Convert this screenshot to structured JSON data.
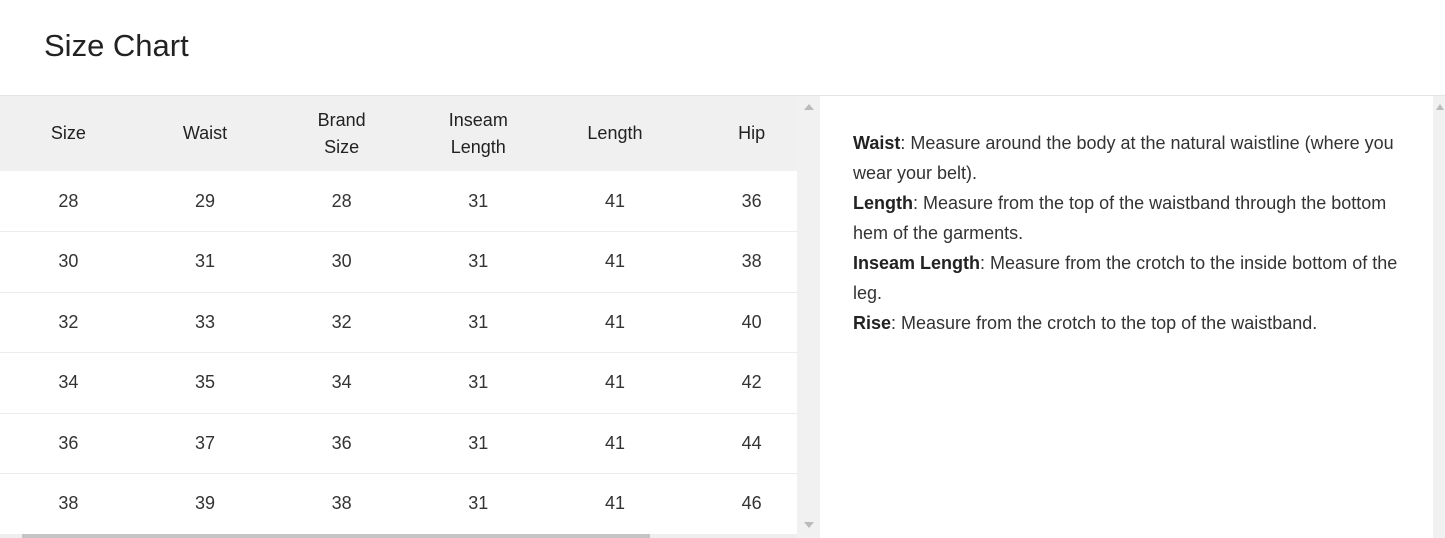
{
  "title": "Size Chart",
  "table": {
    "headers": [
      "Size",
      "Waist",
      "Brand Size",
      "Inseam Length",
      "Length",
      "Hip"
    ],
    "rows": [
      [
        "28",
        "29",
        "28",
        "31",
        "41",
        "36"
      ],
      [
        "30",
        "31",
        "30",
        "31",
        "41",
        "38"
      ],
      [
        "32",
        "33",
        "32",
        "31",
        "41",
        "40"
      ],
      [
        "34",
        "35",
        "34",
        "31",
        "41",
        "42"
      ],
      [
        "36",
        "37",
        "36",
        "31",
        "41",
        "44"
      ],
      [
        "38",
        "39",
        "38",
        "31",
        "41",
        "46"
      ]
    ]
  },
  "notes": [
    {
      "term": "Waist",
      "text": ": Measure around the body at the natural waistline (where you wear your belt)."
    },
    {
      "term": "Length",
      "text": ": Measure from the top of the waistband through the bottom hem of the garments."
    },
    {
      "term": "Inseam Length",
      "text": ": Measure from the crotch to the inside bottom of the leg."
    },
    {
      "term": "Rise",
      "text": ": Measure from the crotch to the top of the waistband."
    }
  ]
}
